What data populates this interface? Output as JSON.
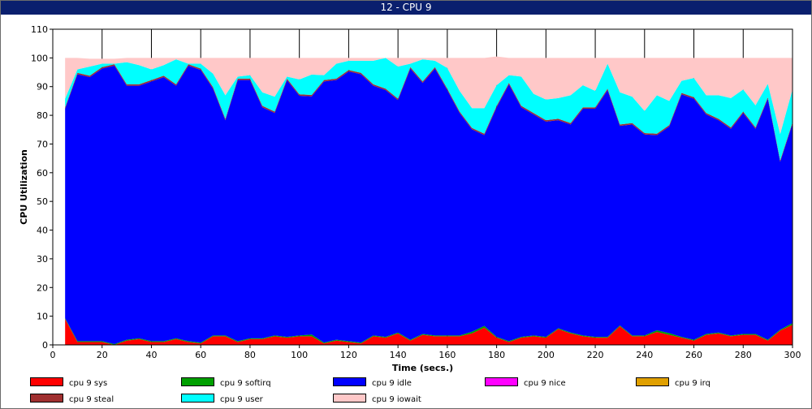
{
  "window": {
    "title": "12 - CPU 9"
  },
  "chart_data": {
    "type": "area",
    "stacked": true,
    "xlabel": "Time (secs.)",
    "ylabel": "CPU Utilization",
    "xlim": [
      0,
      300
    ],
    "ylim": [
      0,
      110
    ],
    "x_ticks": [
      0,
      20,
      40,
      60,
      80,
      100,
      120,
      140,
      160,
      180,
      200,
      220,
      240,
      260,
      280,
      300
    ],
    "y_ticks": [
      0,
      10,
      20,
      30,
      40,
      50,
      60,
      70,
      80,
      90,
      100,
      110
    ],
    "grid": "vertical",
    "legend_position": "bottom",
    "x": [
      5,
      10,
      15,
      20,
      25,
      30,
      35,
      40,
      45,
      50,
      55,
      60,
      65,
      70,
      75,
      80,
      85,
      90,
      95,
      100,
      105,
      110,
      115,
      120,
      125,
      130,
      135,
      140,
      145,
      150,
      155,
      160,
      165,
      170,
      175,
      180,
      185,
      190,
      195,
      200,
      205,
      210,
      215,
      220,
      225,
      230,
      235,
      240,
      245,
      250,
      255,
      260,
      265,
      270,
      275,
      280,
      285,
      290,
      295,
      300
    ],
    "series": [
      {
        "name": "cpu 9 sys",
        "color": "#ff0000",
        "values": [
          9,
          1,
          1,
          1,
          0,
          1.5,
          2,
          1,
          1,
          2,
          1,
          0.5,
          3,
          3,
          1,
          2,
          2,
          3,
          2.5,
          3,
          3,
          0.5,
          1.5,
          1,
          0.5,
          3,
          2.5,
          4,
          1.5,
          3.5,
          3,
          3,
          3,
          4,
          6,
          2.5,
          1,
          2.5,
          3,
          2.5,
          5.5,
          4,
          3,
          2.5,
          2.5,
          6.5,
          3,
          3,
          4.5,
          3.5,
          2.5,
          1.5,
          3.5,
          4,
          3,
          3.5,
          3.5,
          1.5,
          5,
          7
        ]
      },
      {
        "name": "cpu 9 softirq",
        "color": "#00a000",
        "values": [
          0.3,
          0.3,
          0.3,
          0.3,
          0.3,
          0.3,
          0.3,
          0.3,
          0.3,
          0.3,
          0.3,
          0.3,
          0.3,
          0.3,
          0.3,
          0.3,
          0.3,
          0.3,
          0.3,
          0.3,
          0.6,
          0.3,
          0.3,
          0.3,
          0.3,
          0.3,
          0.3,
          0.3,
          0.3,
          0.3,
          0.3,
          0.3,
          0.3,
          0.6,
          0.6,
          0.3,
          0.3,
          0.3,
          0.3,
          0.3,
          0.3,
          0.3,
          0.3,
          0.3,
          0.3,
          0.3,
          0.3,
          0.3,
          0.6,
          0.6,
          0.3,
          0.3,
          0.3,
          0.3,
          0.3,
          0.3,
          0.3,
          0.3,
          0.3,
          0.6
        ]
      },
      {
        "name": "cpu 9 idle",
        "color": "#0000ff",
        "values": [
          73,
          93,
          92,
          95,
          97,
          88.5,
          88,
          90.5,
          92,
          88,
          96,
          95,
          86,
          75,
          91,
          90,
          80.5,
          77.5,
          89.5,
          83.5,
          83,
          91,
          90.5,
          94,
          93.5,
          87,
          86,
          81,
          94.5,
          87.5,
          93,
          85.5,
          77.5,
          70.5,
          66.5,
          80,
          89.5,
          80,
          77,
          75,
          72.5,
          72.5,
          79,
          79.5,
          86,
          69.5,
          73.5,
          70,
          68,
          72,
          84.5,
          84,
          76.5,
          74,
          72,
          77,
          71.5,
          84,
          58.5,
          69.5
        ]
      },
      {
        "name": "cpu 9 nice",
        "color": "#ff00ff",
        "values": [
          0,
          0,
          0,
          0,
          0,
          0,
          0,
          0,
          0,
          0,
          0,
          0,
          0,
          0,
          0,
          0,
          0,
          0,
          0,
          0,
          0,
          0,
          0,
          0,
          0,
          0,
          0,
          0,
          0,
          0,
          0,
          0,
          0,
          0,
          0,
          0,
          0,
          0,
          0,
          0,
          0,
          0,
          0,
          0,
          0,
          0,
          0,
          0,
          0,
          0,
          0,
          0,
          0,
          0,
          0,
          0,
          0,
          0,
          0,
          0
        ]
      },
      {
        "name": "cpu 9 irq",
        "color": "#e0a000",
        "values": [
          0,
          0,
          0,
          0,
          0,
          0,
          0,
          0,
          0,
          0,
          0,
          0,
          0,
          0,
          0,
          0,
          0,
          0,
          0,
          0,
          0,
          0,
          0,
          0,
          0,
          0,
          0,
          0,
          0,
          0,
          0,
          0,
          0,
          0,
          0,
          0,
          0,
          0,
          0,
          0,
          0,
          0,
          0,
          0,
          0,
          0,
          0,
          0,
          0,
          0,
          0,
          0,
          0,
          0,
          0,
          0,
          0,
          0,
          0,
          0
        ]
      },
      {
        "name": "cpu 9 steal",
        "color": "#a03030",
        "values": [
          0.5,
          0.5,
          0.5,
          0.5,
          0.5,
          0.5,
          0.5,
          0.5,
          0.5,
          0.5,
          0.5,
          0.5,
          0.5,
          0.5,
          0.5,
          0.5,
          0.5,
          0.5,
          0.5,
          0.5,
          0.5,
          0.5,
          0.5,
          0.5,
          0.5,
          0.5,
          0.5,
          0.5,
          0.5,
          0.5,
          0.5,
          0.5,
          0.5,
          0.5,
          0.5,
          0.5,
          0.5,
          0.5,
          0.5,
          0.5,
          0.5,
          0.5,
          0.5,
          0.5,
          0.5,
          0.5,
          0.5,
          0.5,
          0.5,
          0.5,
          0.5,
          0.5,
          0.5,
          0.5,
          0.5,
          0.5,
          0.5,
          0.5,
          0.5,
          0.5
        ]
      },
      {
        "name": "cpu 9 user",
        "color": "#00ffff",
        "values": [
          3,
          1.2,
          3.2,
          1.2,
          0.2,
          7.7,
          6.7,
          3.7,
          3.7,
          8.7,
          0.2,
          1.7,
          4.7,
          8.2,
          0.7,
          1.2,
          4.7,
          5.2,
          0.7,
          5.2,
          7.1,
          1.7,
          5.2,
          3.2,
          4.2,
          8.2,
          10.7,
          11.2,
          1.2,
          7.7,
          2.2,
          7.2,
          7.2,
          6.9,
          8.9,
          7.2,
          2.7,
          10.2,
          6.7,
          7.2,
          7.2,
          9.7,
          7.7,
          5.7,
          8.7,
          11.2,
          9.2,
          7.7,
          13.4,
          8.4,
          4.2,
          6.7,
          6.2,
          8.2,
          10.2,
          7.7,
          7.7,
          4.7,
          9.2,
          11.4
        ]
      },
      {
        "name": "cpu 9 iowait",
        "color": "#ffc8c8",
        "values": [
          14.2,
          4,
          2.7,
          1.7,
          1.7,
          1.5,
          2.5,
          4,
          2.5,
          0.5,
          2,
          2,
          5.5,
          13,
          6.5,
          6,
          12,
          13.5,
          6.5,
          7.5,
          5.8,
          6,
          2,
          1,
          1,
          1,
          0,
          3,
          2,
          0.5,
          1,
          3.5,
          11.5,
          17.5,
          17.5,
          10,
          6,
          6.5,
          12.5,
          14.5,
          14,
          13,
          9.5,
          11.5,
          2,
          12,
          13.5,
          18.5,
          13,
          15,
          8,
          7,
          13,
          13,
          14,
          11,
          16.5,
          9,
          26.5,
          11
        ]
      }
    ]
  }
}
